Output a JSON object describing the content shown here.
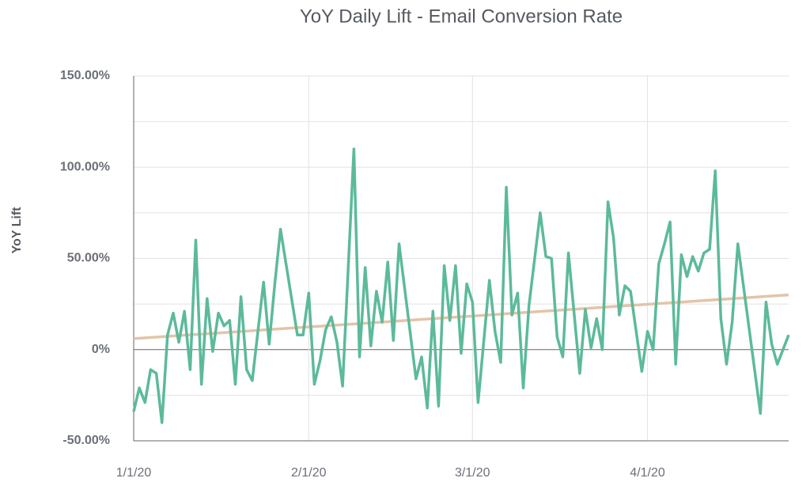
{
  "chart_data": {
    "type": "line",
    "title": "YoY Daily Lift - Email Conversion Rate",
    "y_label": "YoY Lift",
    "series": [
      {
        "name": "YoY Lift",
        "color": "#5cba9b",
        "x": [
          "2020-01-01",
          "2020-01-02",
          "2020-01-03",
          "2020-01-04",
          "2020-01-05",
          "2020-01-06",
          "2020-01-07",
          "2020-01-08",
          "2020-01-09",
          "2020-01-10",
          "2020-01-11",
          "2020-01-12",
          "2020-01-13",
          "2020-01-14",
          "2020-01-15",
          "2020-01-16",
          "2020-01-17",
          "2020-01-18",
          "2020-01-19",
          "2020-01-20",
          "2020-01-21",
          "2020-01-22",
          "2020-01-24",
          "2020-01-25",
          "2020-01-26",
          "2020-01-27",
          "2020-01-30",
          "2020-01-31",
          "2020-02-01",
          "2020-02-02",
          "2020-02-03",
          "2020-02-04",
          "2020-02-05",
          "2020-02-06",
          "2020-02-07",
          "2020-02-09",
          "2020-02-10",
          "2020-02-11",
          "2020-02-12",
          "2020-02-13",
          "2020-02-14",
          "2020-02-15",
          "2020-02-16",
          "2020-02-17",
          "2020-02-20",
          "2020-02-21",
          "2020-02-22",
          "2020-02-23",
          "2020-02-24",
          "2020-02-25",
          "2020-02-26",
          "2020-02-27",
          "2020-02-28",
          "2020-02-29",
          "2020-03-01",
          "2020-03-02",
          "2020-03-04",
          "2020-03-05",
          "2020-03-06",
          "2020-03-07",
          "2020-03-08",
          "2020-03-09",
          "2020-03-10",
          "2020-03-11",
          "2020-03-13",
          "2020-03-14",
          "2020-03-15",
          "2020-03-16",
          "2020-03-17",
          "2020-03-18",
          "2020-03-20",
          "2020-03-21",
          "2020-03-22",
          "2020-03-23",
          "2020-03-24",
          "2020-03-25",
          "2020-03-26",
          "2020-03-27",
          "2020-03-28",
          "2020-03-29",
          "2020-03-31",
          "2020-04-01",
          "2020-04-02",
          "2020-04-03",
          "2020-04-04",
          "2020-04-05",
          "2020-04-06",
          "2020-04-07",
          "2020-04-08",
          "2020-04-09",
          "2020-04-10",
          "2020-04-11",
          "2020-04-12",
          "2020-04-13",
          "2020-04-14",
          "2020-04-15",
          "2020-04-16",
          "2020-04-17",
          "2020-04-21",
          "2020-04-22",
          "2020-04-23",
          "2020-04-24",
          "2020-04-26"
        ],
        "values": [
          -34,
          -21,
          -29,
          -11,
          -13,
          -40,
          8,
          20,
          4,
          21,
          -11,
          60,
          -19,
          28,
          -1,
          20,
          13,
          16,
          -19,
          29,
          -11,
          -17,
          37,
          3,
          36,
          66,
          8,
          8,
          31,
          -19,
          -6,
          11,
          18,
          4,
          -20,
          110,
          -4,
          45,
          2,
          32,
          15,
          48,
          5,
          58,
          -16,
          -4,
          -32,
          21,
          -31,
          46,
          16,
          46,
          -2,
          36,
          26,
          -29,
          38,
          10,
          -7,
          89,
          19,
          31,
          -21,
          24,
          75,
          51,
          50,
          7,
          -4,
          53,
          -13,
          22,
          1,
          17,
          0,
          81,
          61,
          19,
          35,
          32,
          -12,
          10,
          0,
          47,
          58,
          70,
          -8,
          52,
          40,
          51,
          43,
          53,
          55,
          98,
          17,
          -8,
          15,
          58,
          -35,
          26,
          3,
          -8,
          8
        ]
      }
    ],
    "trendline": {
      "color": "#e3c4a9",
      "x": [
        "2020-01-01",
        "2020-04-26"
      ],
      "values": [
        6,
        30
      ]
    },
    "xlim": [
      "2020-01-01",
      "2020-04-26"
    ],
    "xticks": [
      {
        "value": "2020-01-01",
        "label": "1/1/20"
      },
      {
        "value": "2020-02-01",
        "label": "2/1/20"
      },
      {
        "value": "2020-03-01",
        "label": "3/1/20"
      },
      {
        "value": "2020-04-01",
        "label": "4/1/20"
      }
    ],
    "ylim": [
      -50,
      150
    ],
    "yticks": [
      {
        "value": -50,
        "label": "-50.00%"
      },
      {
        "value": 0,
        "label": "0%"
      },
      {
        "value": 50,
        "label": "50.00%"
      },
      {
        "value": 100,
        "label": "100.00%"
      },
      {
        "value": 150,
        "label": "150.00%"
      }
    ],
    "yminorticks": [
      -25,
      25,
      75,
      125
    ],
    "grid": true
  }
}
